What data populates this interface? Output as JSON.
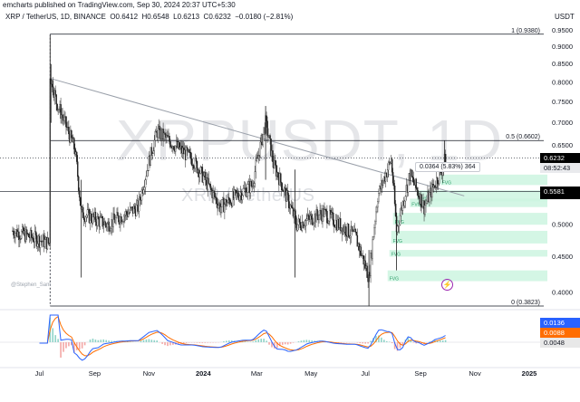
{
  "header": {
    "publisher": "emcharts published on TradingView.com, Sep 30, 2024 20:37 UTC+5:30",
    "symbol_line": "XRP / TetherUS, 1D, BINANCE",
    "open_label": "O",
    "open": "0.6412",
    "high_label": "H",
    "high": "0.6548",
    "low_label": "L",
    "low": "0.6213",
    "close_label": "C",
    "close": "0.6232",
    "change": "−0.0180 (−2.81%)",
    "currency": "USDT"
  },
  "watermark": {
    "main": "XRPUSDT, 1D",
    "sub": "XRP / TetherUS"
  },
  "credit": "@Stephen_Sam",
  "measure_label": "0.0364 (5.83%) 364",
  "fib_labels": {
    "top": "1 (0.9380)",
    "mid": "0.5 (0.6602)",
    "bottom": "0 (0.3823)"
  },
  "price_tags": [
    {
      "label": "XRPUSDT",
      "value": "0.6232",
      "sub": "08:52:43",
      "color": "#000000"
    },
    {
      "value": "0.5581",
      "color": "#000000"
    }
  ],
  "macd_tags": [
    {
      "value": "0.0136",
      "color": "#2962ff"
    },
    {
      "value": "0.0088",
      "color": "#ff6d00"
    },
    {
      "value": "0.0048",
      "color": "#e8e8e8"
    }
  ],
  "fvg_label": "FVG",
  "colors": {
    "candle": "#1e1e1e",
    "fvg": "#ccf5e0",
    "macd": "#2962ff",
    "signal": "#ff6d00",
    "hist_up": "#8fd3c8",
    "hist_down": "#f3a6a4"
  },
  "chart_data": {
    "type": "candlestick",
    "symbol": "XRPUSDT",
    "timeframe": "1D",
    "x_ticks": [
      "Jul",
      "Sep",
      "Nov",
      "2024",
      "Mar",
      "May",
      "Jul",
      "Sep",
      "Nov",
      "2025"
    ],
    "y_ticks": [
      "0.9500",
      "0.9000",
      "0.8500",
      "0.8000",
      "0.7500",
      "0.7000",
      "0.6500",
      "0.6000",
      "0.5500",
      "0.5000",
      "0.4500",
      "0.4000"
    ],
    "y_scale": "log",
    "ylim": [
      0.38,
      0.96
    ],
    "fibonacci": [
      {
        "level": 1,
        "price": 0.938
      },
      {
        "level": 0.5,
        "price": 0.6602
      },
      {
        "level": 0,
        "price": 0.3823
      }
    ],
    "horizontal_levels": [
      0.6602,
      0.6232,
      0.5581
    ],
    "trendline": [
      {
        "x": "2023-07-14",
        "price": 0.81
      },
      {
        "x": "2024-10-20",
        "price": 0.55
      }
    ],
    "last_close": 0.6232,
    "segments": [
      {
        "from": "2023-06-01",
        "price": 0.49
      },
      {
        "from": "2023-07-12",
        "price": 0.47
      },
      {
        "from": "2023-07-13",
        "price": 0.82
      },
      {
        "from": "2023-07-20",
        "price": 0.75
      },
      {
        "from": "2023-08-10",
        "price": 0.64
      },
      {
        "from": "2023-08-17",
        "price": 0.52
      },
      {
        "from": "2023-09-15",
        "price": 0.5
      },
      {
        "from": "2023-10-20",
        "price": 0.53
      },
      {
        "from": "2023-11-10",
        "price": 0.68
      },
      {
        "from": "2023-12-20",
        "price": 0.62
      },
      {
        "from": "2024-01-20",
        "price": 0.53
      },
      {
        "from": "2024-02-25",
        "price": 0.57
      },
      {
        "from": "2024-03-11",
        "price": 0.7
      },
      {
        "from": "2024-03-20",
        "price": 0.61
      },
      {
        "from": "2024-04-15",
        "price": 0.5
      },
      {
        "from": "2024-05-15",
        "price": 0.52
      },
      {
        "from": "2024-06-20",
        "price": 0.48
      },
      {
        "from": "2024-07-05",
        "price": 0.42
      },
      {
        "from": "2024-07-15",
        "price": 0.55
      },
      {
        "from": "2024-07-30",
        "price": 0.62
      },
      {
        "from": "2024-08-05",
        "price": 0.49
      },
      {
        "from": "2024-08-20",
        "price": 0.59
      },
      {
        "from": "2024-09-05",
        "price": 0.53
      },
      {
        "from": "2024-09-25",
        "price": 0.6
      },
      {
        "from": "2024-09-29",
        "price": 0.6232
      }
    ],
    "fvg_zones": [
      {
        "x": "2024-09-23",
        "top": 0.59,
        "bottom": 0.57
      },
      {
        "x": "2024-08-28",
        "top": 0.56,
        "bottom": 0.54
      },
      {
        "x": "2024-08-20",
        "top": 0.545,
        "bottom": 0.53
      },
      {
        "x": "2024-08-01",
        "top": 0.52,
        "bottom": 0.5
      },
      {
        "x": "2024-07-30",
        "top": 0.49,
        "bottom": 0.47
      },
      {
        "x": "2024-07-28",
        "top": 0.46,
        "bottom": 0.45
      },
      {
        "x": "2024-07-26",
        "top": 0.43,
        "bottom": 0.415
      }
    ],
    "macd": {
      "macd": 0.0136,
      "signal": 0.0088,
      "histogram": 0.0048
    }
  }
}
